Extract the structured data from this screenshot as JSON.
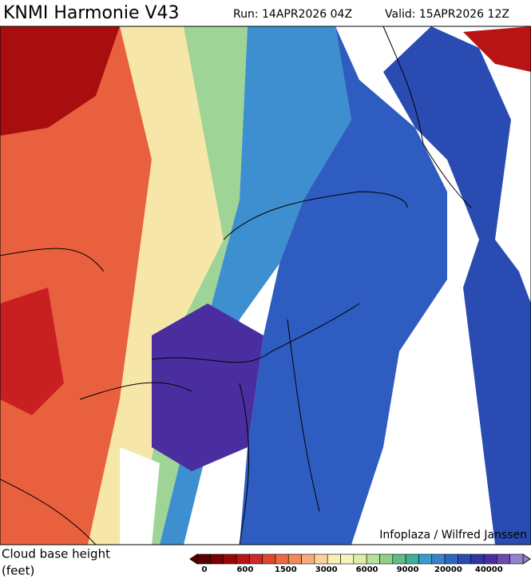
{
  "header": {
    "title": "KNMI Harmonie V43",
    "run": "Run: 14APR2026 04Z",
    "valid": "Valid: 15APR2026 12Z"
  },
  "map": {
    "credit": "Infoplaza / Wilfred Janssen"
  },
  "legend": {
    "title": "Cloud base height",
    "unit": "(feet)",
    "colors": [
      "#5a0000",
      "#7a0000",
      "#990808",
      "#b81414",
      "#d02828",
      "#e04632",
      "#ea6a44",
      "#f08a58",
      "#f5ae7a",
      "#f9d29c",
      "#fcecb8",
      "#f4f6b8",
      "#dcefa6",
      "#b8e09a",
      "#8fcf8a",
      "#62bd82",
      "#3fae9c",
      "#3a9ccc",
      "#3884cc",
      "#2f66c0",
      "#2a4cb2",
      "#2c36a4",
      "#4a2ea0",
      "#6c4aae",
      "#9482c8"
    ],
    "labels": [
      "0",
      "600",
      "1500",
      "3000",
      "6000",
      "9000",
      "20000",
      "40000"
    ]
  }
}
